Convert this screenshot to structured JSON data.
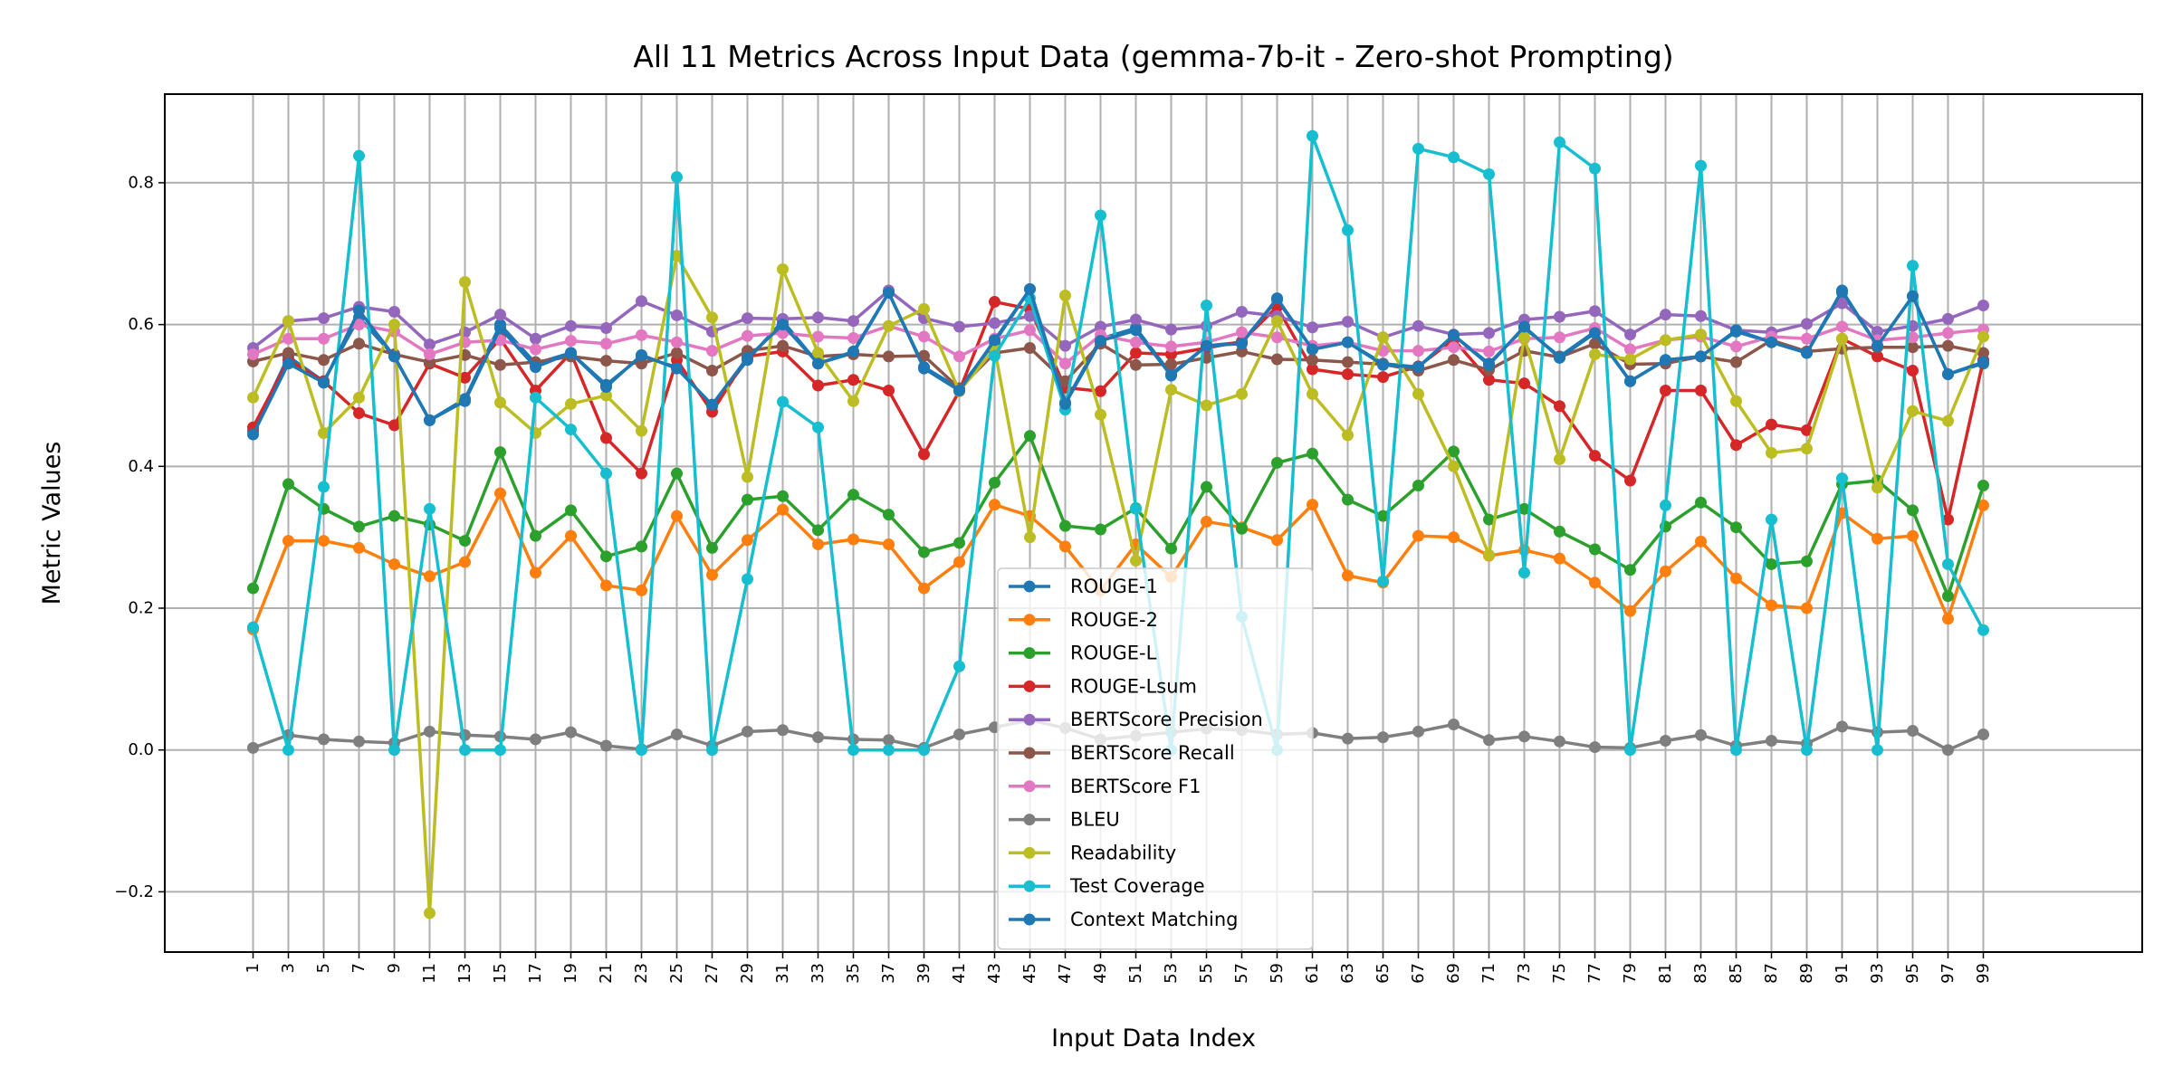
{
  "chart_data": {
    "type": "line",
    "title": "All 11 Metrics Across Input Data (gemma-7b-it - Zero-shot Prompting)",
    "xlabel": "Input Data Index",
    "ylabel": "Metric Values",
    "x": [
      1,
      3,
      5,
      7,
      9,
      11,
      13,
      15,
      17,
      19,
      21,
      23,
      25,
      27,
      29,
      31,
      33,
      35,
      37,
      39,
      41,
      43,
      45,
      47,
      49,
      51,
      53,
      55,
      57,
      59,
      61,
      63,
      65,
      67,
      69,
      71,
      73,
      75,
      77,
      79,
      81,
      83,
      85,
      87,
      89,
      91,
      93,
      95,
      97,
      99
    ],
    "xticks": [
      "1",
      "3",
      "5",
      "7",
      "9",
      "11",
      "13",
      "15",
      "17",
      "19",
      "21",
      "23",
      "25",
      "27",
      "29",
      "31",
      "33",
      "35",
      "37",
      "39",
      "41",
      "43",
      "45",
      "47",
      "49",
      "51",
      "53",
      "55",
      "57",
      "59",
      "61",
      "63",
      "65",
      "67",
      "69",
      "71",
      "73",
      "75",
      "77",
      "79",
      "81",
      "83",
      "85",
      "87",
      "89",
      "91",
      "93",
      "95",
      "97",
      "99"
    ],
    "yticks": [
      {
        "v": -0.2,
        "label": "−0.2"
      },
      {
        "v": 0.0,
        "label": "0.0"
      },
      {
        "v": 0.2,
        "label": "0.2"
      },
      {
        "v": 0.4,
        "label": "0.4"
      },
      {
        "v": 0.6,
        "label": "0.6"
      },
      {
        "v": 0.8,
        "label": "0.8"
      }
    ],
    "xlim": [
      -4,
      108
    ],
    "ylim": [
      -0.285,
      0.925
    ],
    "grid": true,
    "legend_position": "lower-center",
    "series": [
      {
        "name": "ROUGE-1",
        "color": "#1f77b4",
        "values": [
          0.45,
          0.555,
          0.52,
          0.61,
          0.555,
          0.465,
          0.495,
          0.6,
          0.545,
          0.56,
          0.515,
          0.555,
          0.54,
          0.485,
          0.55,
          0.605,
          0.545,
          0.56,
          0.645,
          0.54,
          0.51,
          0.575,
          0.65,
          0.49,
          0.58,
          0.595,
          0.53,
          0.57,
          0.575,
          0.635,
          0.565,
          0.575,
          0.545,
          0.54,
          0.585,
          0.545,
          0.595,
          0.555,
          0.59,
          0.52,
          0.55,
          0.555,
          0.59,
          0.575,
          0.56,
          0.645,
          0.57,
          0.64,
          0.53,
          0.545
        ]
      },
      {
        "name": "ROUGE-2",
        "color": "#ff7f0e",
        "values": [
          0.17,
          0.295,
          0.295,
          0.285,
          0.262,
          0.245,
          0.265,
          0.362,
          0.25,
          0.302,
          0.232,
          0.225,
          0.33,
          0.247,
          0.296,
          0.339,
          0.29,
          0.297,
          0.29,
          0.228,
          0.265,
          0.346,
          0.33,
          0.287,
          0.225,
          0.29,
          0.244,
          0.322,
          0.314,
          0.296,
          0.346,
          0.246,
          0.236,
          0.302,
          0.3,
          0.274,
          0.282,
          0.27,
          0.236,
          0.196,
          0.252,
          0.294,
          0.242,
          0.204,
          0.2,
          0.334,
          0.298,
          0.302,
          0.185,
          0.345
        ]
      },
      {
        "name": "ROUGE-L",
        "color": "#2ca02c",
        "values": [
          0.228,
          0.375,
          0.34,
          0.315,
          0.33,
          0.318,
          0.295,
          0.42,
          0.302,
          0.338,
          0.273,
          0.287,
          0.39,
          0.285,
          0.353,
          0.358,
          0.31,
          0.36,
          0.332,
          0.279,
          0.292,
          0.377,
          0.443,
          0.316,
          0.311,
          0.341,
          0.284,
          0.371,
          0.312,
          0.405,
          0.418,
          0.353,
          0.33,
          0.373,
          0.421,
          0.325,
          0.34,
          0.308,
          0.283,
          0.254,
          0.315,
          0.349,
          0.314,
          0.262,
          0.266,
          0.375,
          0.38,
          0.338,
          0.217,
          0.373
        ]
      },
      {
        "name": "ROUGE-Lsum",
        "color": "#d62728",
        "values": [
          0.455,
          0.55,
          0.52,
          0.475,
          0.458,
          0.545,
          0.525,
          0.58,
          0.507,
          0.56,
          0.44,
          0.39,
          0.55,
          0.477,
          0.555,
          0.562,
          0.514,
          0.522,
          0.507,
          0.417,
          0.506,
          0.632,
          0.622,
          0.511,
          0.506,
          0.56,
          0.558,
          0.567,
          0.576,
          0.625,
          0.537,
          0.53,
          0.526,
          0.541,
          0.579,
          0.522,
          0.517,
          0.485,
          0.415,
          0.38,
          0.507,
          0.507,
          0.43,
          0.459,
          0.451,
          0.58,
          0.555,
          0.535,
          0.325,
          0.55
        ]
      },
      {
        "name": "BERTScore Precision",
        "color": "#9467bd",
        "values": [
          0.567,
          0.605,
          0.609,
          0.625,
          0.618,
          0.572,
          0.589,
          0.614,
          0.58,
          0.598,
          0.595,
          0.633,
          0.613,
          0.59,
          0.609,
          0.608,
          0.61,
          0.605,
          0.648,
          0.609,
          0.597,
          0.602,
          0.612,
          0.57,
          0.597,
          0.607,
          0.593,
          0.598,
          0.618,
          0.612,
          0.596,
          0.604,
          0.582,
          0.598,
          0.586,
          0.588,
          0.607,
          0.611,
          0.619,
          0.586,
          0.614,
          0.612,
          0.592,
          0.589,
          0.601,
          0.63,
          0.59,
          0.598,
          0.608,
          0.627
        ]
      },
      {
        "name": "BERTScore Recall",
        "color": "#8c564b",
        "values": [
          0.548,
          0.56,
          0.55,
          0.573,
          0.558,
          0.547,
          0.557,
          0.543,
          0.547,
          0.555,
          0.549,
          0.545,
          0.56,
          0.535,
          0.563,
          0.57,
          0.555,
          0.558,
          0.555,
          0.556,
          0.51,
          0.56,
          0.567,
          0.52,
          0.573,
          0.543,
          0.544,
          0.553,
          0.562,
          0.551,
          0.55,
          0.547,
          0.544,
          0.535,
          0.55,
          0.536,
          0.563,
          0.554,
          0.573,
          0.544,
          0.545,
          0.555,
          0.547,
          0.578,
          0.562,
          0.566,
          0.568,
          0.568,
          0.57,
          0.56
        ]
      },
      {
        "name": "BERTScore F1",
        "color": "#e377c2",
        "values": [
          0.558,
          0.58,
          0.58,
          0.6,
          0.59,
          0.558,
          0.575,
          0.578,
          0.565,
          0.577,
          0.573,
          0.585,
          0.575,
          0.563,
          0.584,
          0.588,
          0.583,
          0.581,
          0.598,
          0.583,
          0.555,
          0.58,
          0.592,
          0.545,
          0.585,
          0.575,
          0.569,
          0.575,
          0.589,
          0.582,
          0.57,
          0.575,
          0.563,
          0.563,
          0.568,
          0.562,
          0.58,
          0.582,
          0.595,
          0.565,
          0.578,
          0.583,
          0.569,
          0.583,
          0.58,
          0.597,
          0.578,
          0.582,
          0.588,
          0.593
        ]
      },
      {
        "name": "BLEU",
        "color": "#7f7f7f",
        "values": [
          0.003,
          0.021,
          0.015,
          0.012,
          0.01,
          0.026,
          0.021,
          0.019,
          0.015,
          0.025,
          0.006,
          0.001,
          0.022,
          0.006,
          0.026,
          0.028,
          0.018,
          0.015,
          0.014,
          0.003,
          0.022,
          0.032,
          0.042,
          0.031,
          0.015,
          0.02,
          0.025,
          0.03,
          0.028,
          0.022,
          0.024,
          0.016,
          0.018,
          0.026,
          0.036,
          0.014,
          0.019,
          0.012,
          0.004,
          0.003,
          0.013,
          0.021,
          0.006,
          0.013,
          0.009,
          0.033,
          0.025,
          0.027,
          0.0,
          0.022
        ]
      },
      {
        "name": "Readability",
        "color": "#bcbd22",
        "values": [
          0.497,
          0.605,
          0.447,
          0.497,
          0.6,
          -0.23,
          0.66,
          0.49,
          0.447,
          0.488,
          0.5,
          0.45,
          0.697,
          0.61,
          0.385,
          0.678,
          0.56,
          0.492,
          0.598,
          0.622,
          0.506,
          0.566,
          0.3,
          0.641,
          0.473,
          0.267,
          0.508,
          0.486,
          0.502,
          0.605,
          0.502,
          0.444,
          0.582,
          0.502,
          0.4,
          0.275,
          0.582,
          0.41,
          0.558,
          0.551,
          0.578,
          0.586,
          0.492,
          0.419,
          0.425,
          0.58,
          0.37,
          0.478,
          0.464,
          0.583
        ]
      },
      {
        "name": "Test Coverage",
        "color": "#17becf",
        "values": [
          0.173,
          0.0,
          0.371,
          0.838,
          0.0,
          0.34,
          0.0,
          0.0,
          0.497,
          0.452,
          0.39,
          0.0,
          0.808,
          0.0,
          0.241,
          0.491,
          0.455,
          0.0,
          0.0,
          0.0,
          0.118,
          0.556,
          0.637,
          0.48,
          0.754,
          0.34,
          0.0,
          0.627,
          0.188,
          0.0,
          0.866,
          0.733,
          0.238,
          0.848,
          0.836,
          0.812,
          0.25,
          0.857,
          0.82,
          0.0,
          0.345,
          0.824,
          0.0,
          0.325,
          0.0,
          0.383,
          0.0,
          0.683,
          0.262,
          0.169
        ]
      },
      {
        "name": "Context Matching",
        "color": "#1f77b4",
        "values": [
          0.445,
          0.545,
          0.518,
          0.62,
          0.555,
          0.465,
          0.492,
          0.595,
          0.54,
          0.56,
          0.512,
          0.557,
          0.538,
          0.487,
          0.553,
          0.6,
          0.545,
          0.562,
          0.645,
          0.538,
          0.507,
          0.578,
          0.65,
          0.488,
          0.577,
          0.592,
          0.528,
          0.57,
          0.573,
          0.637,
          0.565,
          0.575,
          0.543,
          0.54,
          0.585,
          0.543,
          0.597,
          0.553,
          0.588,
          0.52,
          0.55,
          0.555,
          0.592,
          0.575,
          0.56,
          0.648,
          0.57,
          0.64,
          0.53,
          0.547
        ]
      }
    ]
  }
}
